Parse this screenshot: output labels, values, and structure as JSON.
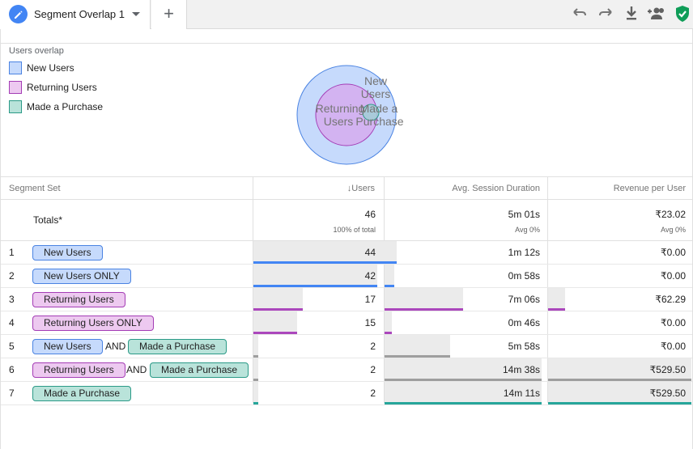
{
  "tab": {
    "title": "Segment Overlap 1",
    "add_label": "+"
  },
  "toolbar": {
    "icons": [
      "undo-icon",
      "redo-icon",
      "download-icon",
      "add-user-icon",
      "shield-check-icon"
    ]
  },
  "legend": {
    "title": "Users overlap",
    "items": [
      {
        "label": "New Users",
        "fill": "#c6dafc",
        "stroke": "#4a83e2"
      },
      {
        "label": "Returning Users",
        "fill": "#edc9f0",
        "stroke": "#a43cb5"
      },
      {
        "label": "Made a Purchase",
        "fill": "#b9e3da",
        "stroke": "#2b9a87"
      }
    ]
  },
  "venn": {
    "new_l1": "New",
    "new_l2": "Users",
    "ret_l1": "Returning",
    "ret_l2": "Users",
    "pur_l1": "Made a",
    "pur_l2": "Purchase"
  },
  "table": {
    "headers": {
      "segment": "Segment Set",
      "users": "↓Users",
      "duration": "Avg. Session Duration",
      "revenue": "Revenue per User"
    },
    "totals": {
      "label": "Totals*",
      "users": "46",
      "users_sub": "100% of total",
      "duration": "5m 01s",
      "duration_sub": "Avg 0%",
      "revenue": "₹23.02",
      "revenue_sub": "Avg 0%"
    },
    "rows": [
      {
        "idx": "1",
        "seg1": "New Users",
        "and": "",
        "seg2": "",
        "users": "44",
        "duration": "1m 12s",
        "revenue": "₹0.00"
      },
      {
        "idx": "2",
        "seg1": "New Users ONLY",
        "and": "",
        "seg2": "",
        "users": "42",
        "duration": "0m 58s",
        "revenue": "₹0.00"
      },
      {
        "idx": "3",
        "seg1": "Returning Users",
        "and": "",
        "seg2": "",
        "users": "17",
        "duration": "7m 06s",
        "revenue": "₹62.29"
      },
      {
        "idx": "4",
        "seg1": "Returning Users ONLY",
        "and": "",
        "seg2": "",
        "users": "15",
        "duration": "0m 46s",
        "revenue": "₹0.00"
      },
      {
        "idx": "5",
        "seg1": "New Users",
        "and": "AND",
        "seg2": "Made a Purchase",
        "users": "2",
        "duration": "5m 58s",
        "revenue": "₹0.00"
      },
      {
        "idx": "6",
        "seg1": "Returning Users",
        "and": "AND",
        "seg2": "Made a Purchase",
        "users": "2",
        "duration": "14m 38s",
        "revenue": "₹529.50"
      },
      {
        "idx": "7",
        "seg1": "Made a Purchase",
        "and": "",
        "seg2": "",
        "users": "2",
        "duration": "14m 11s",
        "revenue": "₹529.50"
      }
    ]
  },
  "colors": {
    "new": "#4285f4",
    "returning": "#ab47bc",
    "purchase": "#26a69a",
    "grey": "#9e9e9e"
  }
}
